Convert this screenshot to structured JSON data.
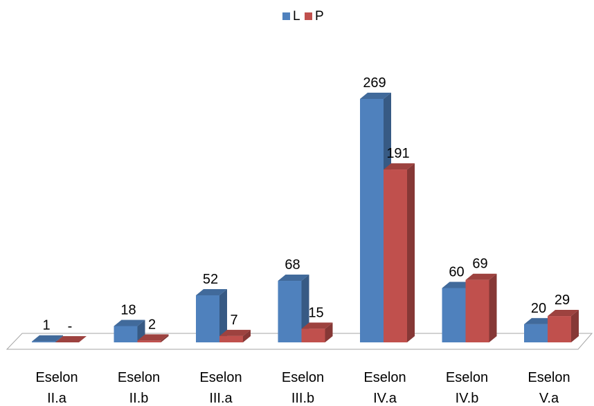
{
  "chart_data": {
    "type": "bar",
    "categories": [
      [
        "Eselon",
        "II.a"
      ],
      [
        "Eselon",
        "II.b"
      ],
      [
        "Eselon",
        "III.a"
      ],
      [
        "Eselon",
        "III.b"
      ],
      [
        "Eselon",
        "IV.a"
      ],
      [
        "Eselon",
        "IV.b"
      ],
      [
        "Eselon",
        "V.a"
      ]
    ],
    "series": [
      {
        "name": "L",
        "color": "#4f81bd",
        "values": [
          1,
          18,
          52,
          68,
          269,
          60,
          20
        ],
        "labels": [
          "1",
          "18",
          "52",
          "68",
          "269",
          "60",
          "20"
        ]
      },
      {
        "name": "P",
        "color": "#c0504d",
        "values": [
          0,
          2,
          7,
          15,
          191,
          69,
          29
        ],
        "labels": [
          "-",
          "2",
          "7",
          "15",
          "191",
          "69",
          "29"
        ]
      }
    ],
    "ylim": [
      0,
      269
    ],
    "legend_position": "top-center",
    "grid": false,
    "style": "3d-clustered-column"
  }
}
